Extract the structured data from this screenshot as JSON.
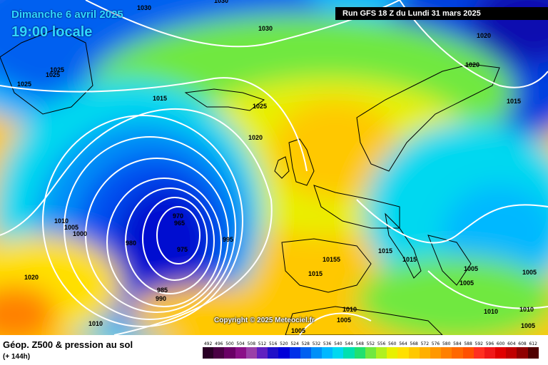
{
  "header": {
    "date": "Dimanche 6 avril 2025",
    "time": "19:00 locale",
    "run": "Run GFS 18 Z du Lundi 31 mars 2025"
  },
  "copyright": "Copyright © 2025 Meteociel.fr",
  "legend": {
    "title": "Géop. Z500 & pression au sol",
    "subtitle": "(+ 144h)",
    "scale": [
      {
        "label": "492",
        "color": "#2a0026"
      },
      {
        "label": "496",
        "color": "#4a0044"
      },
      {
        "label": "500",
        "color": "#6a0066"
      },
      {
        "label": "504",
        "color": "#8a1088"
      },
      {
        "label": "508",
        "color": "#9a40a8"
      },
      {
        "label": "512",
        "color": "#6020c0"
      },
      {
        "label": "516",
        "color": "#2010c8"
      },
      {
        "label": "520",
        "color": "#0000d8"
      },
      {
        "label": "524",
        "color": "#0030e8"
      },
      {
        "label": "528",
        "color": "#0060f0"
      },
      {
        "label": "532",
        "color": "#0090f8"
      },
      {
        "label": "536",
        "color": "#00b8ff"
      },
      {
        "label": "540",
        "color": "#00d8f0"
      },
      {
        "label": "544",
        "color": "#00e0b0"
      },
      {
        "label": "548",
        "color": "#20e070"
      },
      {
        "label": "552",
        "color": "#70e840"
      },
      {
        "label": "556",
        "color": "#b0f020"
      },
      {
        "label": "560",
        "color": "#e8f000"
      },
      {
        "label": "564",
        "color": "#ffe000"
      },
      {
        "label": "568",
        "color": "#ffc800"
      },
      {
        "label": "572",
        "color": "#ffb000"
      },
      {
        "label": "576",
        "color": "#ff9800"
      },
      {
        "label": "580",
        "color": "#ff8000"
      },
      {
        "label": "584",
        "color": "#ff6800"
      },
      {
        "label": "588",
        "color": "#ff5000"
      },
      {
        "label": "592",
        "color": "#ff3020"
      },
      {
        "label": "596",
        "color": "#f01818"
      },
      {
        "label": "600",
        "color": "#e00000"
      },
      {
        "label": "604",
        "color": "#c00000"
      },
      {
        "label": "608",
        "color": "#900000"
      },
      {
        "label": "612",
        "color": "#500000"
      }
    ]
  },
  "isobars": [
    "1030",
    "1030",
    "1030",
    "1025",
    "1025",
    "1025",
    "1030",
    "1020",
    "1020",
    "1015",
    "1015",
    "1025",
    "1020",
    "1010",
    "1005",
    "1000",
    "970",
    "965",
    "975",
    "980",
    "985",
    "990",
    "995",
    "1020",
    "1010",
    "10155",
    "1015",
    "1015",
    "1015",
    "1005",
    "1005",
    "1010",
    "1010",
    "1005",
    "1005",
    "1005",
    "1010",
    "1005",
    "1005",
    "1005"
  ]
}
